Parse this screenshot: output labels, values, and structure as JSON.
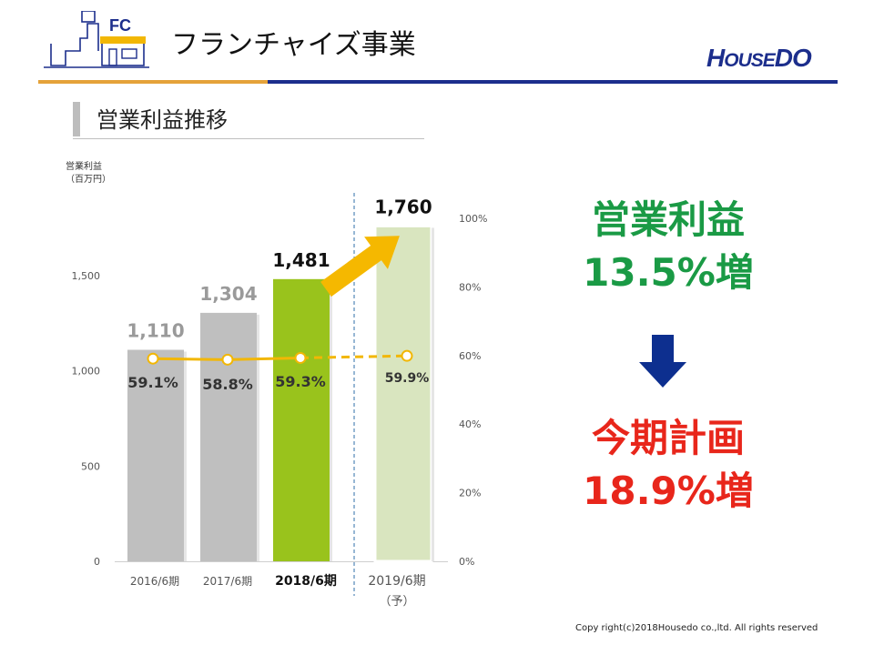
{
  "header": {
    "logo_label": "FC",
    "title": "フランチャイズ事業",
    "brand_big": "H",
    "brand_small": "OUSE",
    "brand_end": "DO"
  },
  "section": {
    "title": "営業利益推移"
  },
  "right_panel": {
    "line1": "営業利益",
    "line2": "13.5%増",
    "line3": "今期計画",
    "line4": "18.9%増"
  },
  "footer": {
    "copyright": "Copy right(c)2018Housedo co.,ltd. All rights reserved"
  },
  "colors": {
    "bar_gray": "#bfbfbf",
    "bar_green": "#99c31c",
    "bar_forecast": "#d9e5bf",
    "line_orange": "#f2b705",
    "arrow_orange": "#f5b800",
    "arrow_navy": "#0d2f8f",
    "text_green": "#1a9a45",
    "text_red": "#e8261b"
  },
  "chart_data": {
    "type": "bar",
    "categories": [
      "2016/6期",
      "2017/6期",
      "2018/6期",
      "2019/6期"
    ],
    "category_sublabels": [
      "",
      "",
      "",
      "（予）"
    ],
    "ylabel_left": "営業利益\n（百万円）",
    "yticks_left": [
      "0",
      "500",
      "1,000",
      "1,500"
    ],
    "ylim_left": [
      0,
      1800
    ],
    "yticks_right": [
      "0%",
      "20%",
      "40%",
      "60%",
      "80%",
      "100%"
    ],
    "ylim_right": [
      0,
      100
    ],
    "series": [
      {
        "type": "bar",
        "values": [
          1110,
          1304,
          1481,
          1760
        ],
        "value_labels": [
          "1,110",
          "1,304",
          "1,481",
          "1,760"
        ]
      },
      {
        "type": "line",
        "axis": "right",
        "values": [
          59.1,
          58.8,
          59.3,
          59.9
        ],
        "value_labels": [
          "59.1%",
          "58.8%",
          "59.3%",
          "59.9%"
        ]
      }
    ],
    "grid": false
  }
}
